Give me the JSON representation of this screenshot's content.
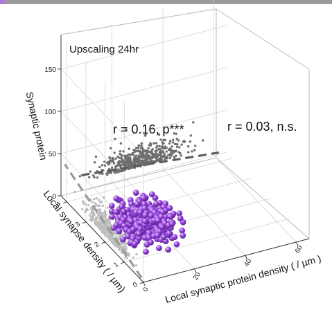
{
  "chart_data": {
    "type": "scatter",
    "title": "Upscaling 24hr",
    "axes": {
      "x": {
        "label": "Local synaptic protein density ( / µm )",
        "ticks": [
          "0",
          "20",
          "40",
          "60"
        ],
        "range": [
          0,
          65
        ]
      },
      "y": {
        "label": "Local synapse density ( / µm)",
        "ticks": [
          "0",
          "1",
          "2",
          "3",
          "4"
        ],
        "range": [
          0,
          4.3
        ]
      },
      "z": {
        "label": "Synaptic protein",
        "ticks": [
          "0",
          "50",
          "100",
          "150"
        ],
        "range": [
          0,
          190
        ]
      }
    },
    "annotations": [
      {
        "text": "r = 0.16, p***",
        "color": "#8a8a8a"
      },
      {
        "text": "r = 0.03, n.s.",
        "color": "#222222"
      }
    ],
    "series": [
      {
        "kind": "3d-spheres",
        "color": "#8e3fcf",
        "x_range": [
          0,
          35
        ],
        "y_range": [
          0.5,
          3.4
        ],
        "z_range": [
          0,
          60
        ],
        "n": 420
      },
      {
        "kind": "projection-left-wall",
        "color": "#bdbdbd",
        "fit_line": true
      },
      {
        "kind": "projection-back-wall",
        "color": "#6e6e6e",
        "fit_line": true
      }
    ],
    "grid": true,
    "colors": {
      "spheres": "#8e3fcf",
      "left_projection": "#bdbdbd",
      "right_projection": "#6e6e6e",
      "top_band": "#9b9b9b",
      "accent": "#8e3fcf"
    }
  }
}
